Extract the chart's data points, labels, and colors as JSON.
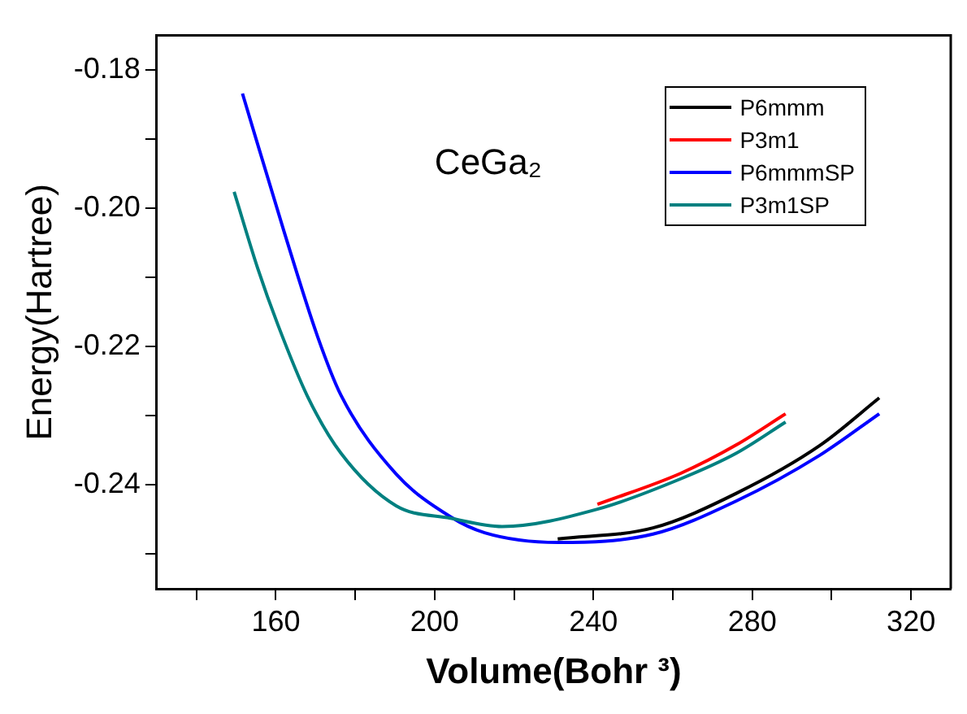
{
  "chart_data": {
    "type": "line",
    "xlabel": "Volume(Bohr ³)",
    "ylabel": "Energy(Hartree)",
    "annotations": [
      "CeGa₂"
    ],
    "xlim": [
      130,
      330
    ],
    "xticks": [
      {
        "value": 140,
        "label": null
      },
      160,
      {
        "value": 180,
        "label": null
      },
      200,
      {
        "value": 220,
        "label": null
      },
      240,
      {
        "value": 260,
        "label": null
      },
      280,
      {
        "value": 300,
        "label": null
      },
      320
    ],
    "ylim": [
      -0.255,
      -0.175
    ],
    "yticks": [
      {
        "value": -0.25,
        "label": null
      },
      -0.24,
      {
        "value": -0.23,
        "label": null
      },
      -0.22,
      {
        "value": -0.21,
        "label": null
      },
      {
        "value": -0.2,
        "label": "-0.20"
      },
      {
        "value": -0.19,
        "label": null
      },
      -0.18
    ],
    "grid": false,
    "legend": "top right",
    "marker": "none",
    "line_style": "solid",
    "series": [
      {
        "name": "P6mmm",
        "color": "#000000",
        "x": [
          231,
          255,
          276,
          297,
          312
        ],
        "values": [
          -0.2478,
          -0.2462,
          -0.2412,
          -0.2343,
          -0.2274
        ]
      },
      {
        "name": "P3m1",
        "color": "#ff0000",
        "x": [
          241,
          262,
          276,
          288.4
        ],
        "values": [
          -0.2428,
          -0.2383,
          -0.2342,
          -0.2297
        ]
      },
      {
        "name": "P6mmmSP",
        "color": "#0000ff",
        "x": [
          151.6,
          162.1,
          170.5,
          176.4,
          190.3,
          204,
          212.6,
          231,
          255,
          276,
          297,
          312
        ],
        "values": [
          -0.1834,
          -0.2034,
          -0.2185,
          -0.227,
          -0.2384,
          -0.2446,
          -0.2469,
          -0.2483,
          -0.2471,
          -0.2423,
          -0.2357,
          -0.2297
        ]
      },
      {
        "name": "P3m1SP",
        "color": "#008080",
        "x": [
          149.5,
          155.4,
          160.5,
          168,
          176.4,
          190.3,
          204,
          217,
          241,
          262,
          276,
          288.4
        ],
        "values": [
          -0.1976,
          -0.2086,
          -0.2168,
          -0.2272,
          -0.2354,
          -0.243,
          -0.2448,
          -0.246,
          -0.2435,
          -0.2391,
          -0.2354,
          -0.2309
        ]
      }
    ]
  }
}
